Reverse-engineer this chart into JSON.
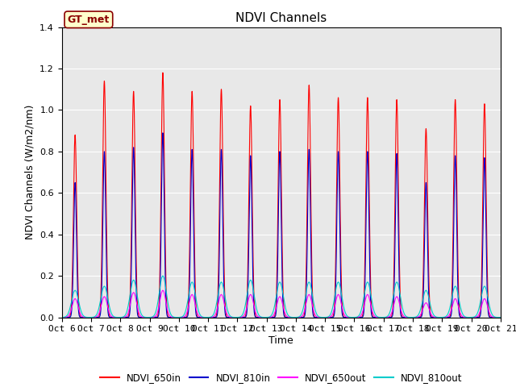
{
  "title": "NDVI Channels",
  "xlabel": "Time",
  "ylabel": "NDVI Channels (W/m2/nm)",
  "annotation": "GT_met",
  "ylim": [
    0,
    1.4
  ],
  "background_color": "#e8e8e8",
  "legend_labels": [
    "NDVI_650in",
    "NDVI_810in",
    "NDVI_650out",
    "NDVI_810out"
  ],
  "legend_colors": [
    "#ff0000",
    "#0000cc",
    "#ff00ff",
    "#00cccc"
  ],
  "xtick_labels": [
    "Oct 6",
    "Oct 7",
    "Oct 8",
    "Oct 9",
    "Oct 10",
    "Oct 11",
    "Oct 12",
    "Oct 13",
    "Oct 14",
    "Oct 15",
    "Oct 16",
    "Oct 17",
    "Oct 18",
    "Oct 19",
    "Oct 20",
    "Oct 21"
  ],
  "num_days": 15,
  "peaks_650in": [
    0.88,
    1.14,
    1.09,
    1.18,
    1.09,
    1.1,
    1.02,
    1.05,
    1.12,
    1.06,
    1.06,
    1.05,
    0.91,
    1.05,
    1.03
  ],
  "peaks_810in": [
    0.65,
    0.8,
    0.82,
    0.89,
    0.81,
    0.81,
    0.78,
    0.8,
    0.81,
    0.8,
    0.8,
    0.79,
    0.65,
    0.78,
    0.77
  ],
  "peaks_650out": [
    0.09,
    0.1,
    0.12,
    0.13,
    0.11,
    0.11,
    0.11,
    0.1,
    0.11,
    0.11,
    0.11,
    0.1,
    0.07,
    0.09,
    0.09
  ],
  "peaks_810out": [
    0.13,
    0.15,
    0.18,
    0.2,
    0.17,
    0.17,
    0.18,
    0.17,
    0.17,
    0.17,
    0.17,
    0.17,
    0.13,
    0.15,
    0.15
  ],
  "grid_color": "#ffffff",
  "title_fontsize": 11,
  "label_fontsize": 9,
  "tick_fontsize": 8
}
